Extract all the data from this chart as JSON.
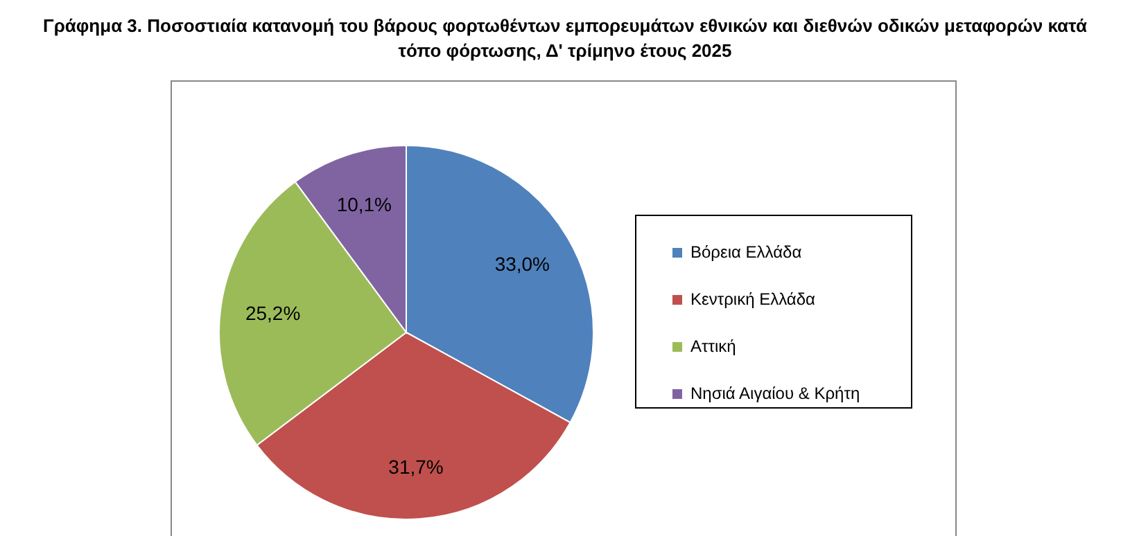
{
  "chart_data": {
    "type": "pie",
    "title": "Γράφημα 3. Ποσοστιαία κατανομή του βάρους φορτωθέντων εμπορευμάτων εθνικών και διεθνών οδικών μεταφορών κατά τόπο φόρτωσης, Δ' τρίμηνο έτους 2025",
    "categories": [
      "Βόρεια Ελλάδα",
      "Κεντρική Ελλάδα",
      "Αττική",
      "Νησιά Αιγαίου & Κρήτη"
    ],
    "values": [
      33.0,
      31.7,
      25.2,
      10.1
    ],
    "colors": [
      "#4f81bd",
      "#c0504d",
      "#9bbb59",
      "#8064a2"
    ],
    "value_labels": [
      "33,0%",
      "31,7%",
      "25,2%",
      "10,1%"
    ],
    "legend": "right"
  }
}
